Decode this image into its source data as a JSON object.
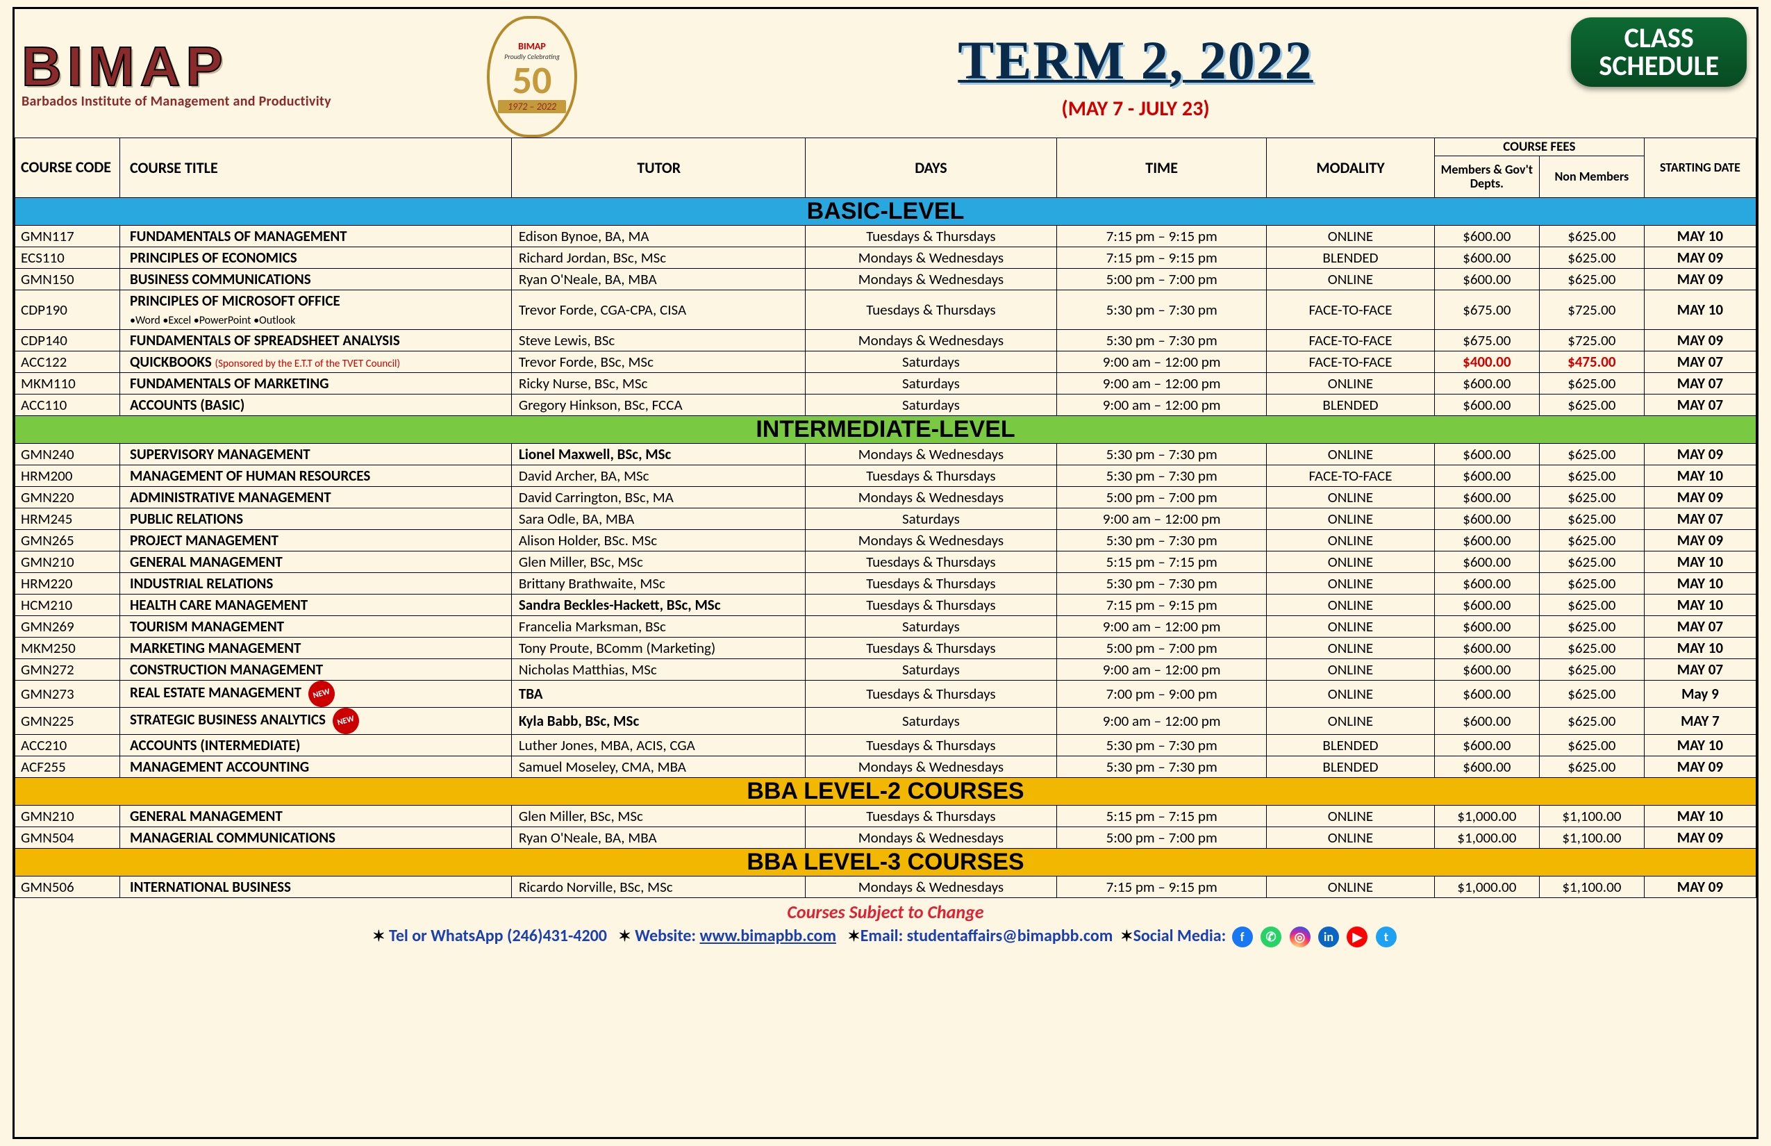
{
  "logo": {
    "text": "BIMAP",
    "subtitle": "Barbados Institute of Management and Productivity"
  },
  "anniversary": {
    "top": "BIMAP",
    "line": "Proudly Celebrating",
    "num": "50",
    "years": "1972  –  2022"
  },
  "header": {
    "title": "TERM 2, 2022",
    "subtitle": "(MAY 7 - JULY 23)",
    "badge1": "CLASS",
    "badge2": "SCHEDULE"
  },
  "fees_label": "COURSE FEES",
  "columns": {
    "code": "COURSE CODE",
    "title": "COURSE TITLE",
    "tutor": "TUTOR",
    "days": "DAYS",
    "time": "TIME",
    "modality": "MODALITY",
    "fee1": "Members & Gov't Depts.",
    "fee2": "Non Members",
    "start": "STARTING DATE"
  },
  "sections": {
    "basic": "BASIC-LEVEL",
    "inter": "INTERMEDIATE-LEVEL",
    "bba2": "BBA LEVEL-2 COURSES",
    "bba3": "BBA LEVEL-3 COURSES"
  },
  "basic": [
    {
      "code": "GMN117",
      "title": "FUNDAMENTALS OF MANAGEMENT",
      "tutor": "Edison Bynoe, BA, MA",
      "days": "Tuesdays & Thursdays",
      "time": "7:15 pm – 9:15 pm",
      "mod": "ONLINE",
      "f1": "$600.00",
      "f2": "$625.00",
      "date": "MAY 10"
    },
    {
      "code": "ECS110",
      "title": "PRINCIPLES OF ECONOMICS",
      "tutor": "Richard Jordan, BSc, MSc",
      "days": "Mondays & Wednesdays",
      "time": "7:15 pm – 9:15 pm",
      "mod": "BLENDED",
      "f1": "$600.00",
      "f2": "$625.00",
      "date": "MAY 09"
    },
    {
      "code": "GMN150",
      "title": "BUSINESS COMMUNICATIONS",
      "tutor": "Ryan O'Neale, BA, MBA",
      "days": "Mondays & Wednesdays",
      "time": "5:00 pm – 7:00 pm",
      "mod": "ONLINE",
      "f1": "$600.00",
      "f2": "$625.00",
      "date": "MAY 09"
    },
    {
      "code": "CDP190",
      "title": "PRINCIPLES OF MICROSOFT OFFICE",
      "sub": "•Word •Excel •PowerPoint •Outlook",
      "tutor": "Trevor Forde, CGA-CPA, CISA",
      "days": "Tuesdays & Thursdays",
      "time": "5:30 pm – 7:30 pm",
      "mod": "FACE-TO-FACE",
      "f1": "$675.00",
      "f2": "$725.00",
      "date": "MAY 10"
    },
    {
      "code": "CDP140",
      "title": "FUNDAMENTALS OF SPREADSHEET ANALYSIS",
      "tutor": "Steve Lewis, BSc",
      "days": "Mondays & Wednesdays",
      "time": "5:30 pm – 7:30 pm",
      "mod": "FACE-TO-FACE",
      "f1": "$675.00",
      "f2": "$725.00",
      "date": "MAY 09"
    },
    {
      "code": "ACC122",
      "title": "QUICKBOOKS",
      "sponsor": "(Sponsored by the E.T.T of the TVET Council)",
      "tutor": "Trevor Forde, BSc, MSc",
      "days": "Saturdays",
      "time": "9:00 am – 12:00 pm",
      "mod": "FACE-TO-FACE",
      "f1": "$400.00",
      "f2": "$475.00",
      "date": "MAY 07",
      "red": true
    },
    {
      "code": "MKM110",
      "title": "FUNDAMENTALS OF MARKETING",
      "tutor": "Ricky Nurse, BSc, MSc",
      "days": "Saturdays",
      "time": "9:00 am – 12:00 pm",
      "mod": "ONLINE",
      "f1": "$600.00",
      "f2": "$625.00",
      "date": "MAY 07"
    },
    {
      "code": "ACC110",
      "title": "ACCOUNTS (BASIC)",
      "tutor": "Gregory Hinkson, BSc, FCCA",
      "days": "Saturdays",
      "time": "9:00 am – 12:00 pm",
      "mod": "BLENDED",
      "f1": "$600.00",
      "f2": "$625.00",
      "date": "MAY 07"
    }
  ],
  "inter": [
    {
      "code": "GMN240",
      "title": "SUPERVISORY MANAGEMENT",
      "tutor": "Lionel Maxwell, BSc, MSc",
      "bold": true,
      "days": "Mondays & Wednesdays",
      "time": "5:30 pm – 7:30 pm",
      "mod": "ONLINE",
      "f1": "$600.00",
      "f2": "$625.00",
      "date": "MAY 09"
    },
    {
      "code": "HRM200",
      "title": "MANAGEMENT OF HUMAN RESOURCES",
      "tutor": "David Archer, BA, MSc",
      "days": "Tuesdays & Thursdays",
      "time": "5:30 pm – 7:30 pm",
      "mod": "FACE-TO-FACE",
      "f1": "$600.00",
      "f2": "$625.00",
      "date": "MAY 10"
    },
    {
      "code": "GMN220",
      "title": "ADMINISTRATIVE MANAGEMENT",
      "tutor": "David Carrington, BSc, MA",
      "days": "Mondays & Wednesdays",
      "time": "5:00 pm – 7:00 pm",
      "mod": "ONLINE",
      "f1": "$600.00",
      "f2": "$625.00",
      "date": "MAY 09"
    },
    {
      "code": "HRM245",
      "title": "PUBLIC RELATIONS",
      "tutor": "Sara Odle, BA, MBA",
      "days": "Saturdays",
      "time": "9:00 am – 12:00 pm",
      "mod": "ONLINE",
      "f1": "$600.00",
      "f2": "$625.00",
      "date": "MAY 07"
    },
    {
      "code": "GMN265",
      "title": "PROJECT MANAGEMENT",
      "tutor": "Alison Holder, BSc. MSc",
      "days": "Mondays & Wednesdays",
      "time": "5:30 pm – 7:30 pm",
      "mod": "ONLINE",
      "f1": "$600.00",
      "f2": "$625.00",
      "date": "MAY 09"
    },
    {
      "code": "GMN210",
      "title": "GENERAL MANAGEMENT",
      "tutor": "Glen Miller, BSc, MSc",
      "days": "Tuesdays & Thursdays",
      "time": "5:15 pm – 7:15 pm",
      "mod": "ONLINE",
      "f1": "$600.00",
      "f2": "$625.00",
      "date": "MAY 10"
    },
    {
      "code": "HRM220",
      "title": "INDUSTRIAL RELATIONS",
      "tutor": "Brittany Brathwaite, MSc",
      "days": "Tuesdays & Thursdays",
      "time": "5:30 pm – 7:30 pm",
      "mod": "ONLINE",
      "f1": "$600.00",
      "f2": "$625.00",
      "date": "MAY 10"
    },
    {
      "code": "HCM210",
      "title": "HEALTH CARE MANAGEMENT",
      "tutor": "Sandra Beckles-Hackett, BSc, MSc",
      "bold": true,
      "days": "Tuesdays & Thursdays",
      "time": "7:15 pm – 9:15 pm",
      "mod": "ONLINE",
      "f1": "$600.00",
      "f2": "$625.00",
      "date": "MAY 10"
    },
    {
      "code": "GMN269",
      "title": "TOURISM MANAGEMENT",
      "tutor": "Francelia Marksman, BSc",
      "days": "Saturdays",
      "time": "9:00 am – 12:00 pm",
      "mod": "ONLINE",
      "f1": "$600.00",
      "f2": "$625.00",
      "date": "MAY 07"
    },
    {
      "code": "MKM250",
      "title": "MARKETING MANAGEMENT",
      "tutor": "Tony Proute, BComm (Marketing)",
      "days": "Tuesdays & Thursdays",
      "time": "5:00 pm – 7:00 pm",
      "mod": "ONLINE",
      "f1": "$600.00",
      "f2": "$625.00",
      "date": "MAY 10"
    },
    {
      "code": "GMN272",
      "title": "CONSTRUCTION MANAGEMENT",
      "tutor": "Nicholas Matthias, MSc",
      "days": "Saturdays",
      "time": "9:00 am – 12:00 pm",
      "mod": "ONLINE",
      "f1": "$600.00",
      "f2": "$625.00",
      "date": "MAY 07"
    },
    {
      "code": "GMN273",
      "title": "REAL ESTATE MANAGEMENT",
      "new": true,
      "tutor": "TBA",
      "bold": true,
      "days": "Tuesdays & Thursdays",
      "time": "7:00 pm – 9:00 pm",
      "mod": "ONLINE",
      "f1": "$600.00",
      "f2": "$625.00",
      "date": "May 9"
    },
    {
      "code": "GMN225",
      "title": "STRATEGIC BUSINESS ANALYTICS",
      "new": true,
      "tutor": "Kyla Babb, BSc, MSc",
      "bold": true,
      "days": "Saturdays",
      "time": "9:00 am – 12:00 pm",
      "mod": "ONLINE",
      "f1": "$600.00",
      "f2": "$625.00",
      "date": "MAY 7"
    },
    {
      "code": "ACC210",
      "title": "ACCOUNTS (INTERMEDIATE)",
      "tutor": "Luther Jones,  MBA, ACIS, CGA",
      "days": "Tuesdays & Thursdays",
      "time": "5:30 pm – 7:30 pm",
      "mod": "BLENDED",
      "f1": "$600.00",
      "f2": "$625.00",
      "date": "MAY 10"
    },
    {
      "code": "ACF255",
      "title": "MANAGEMENT ACCOUNTING",
      "tutor": "Samuel Moseley, CMA, MBA",
      "days": "Mondays & Wednesdays",
      "time": "5:30 pm – 7:30 pm",
      "mod": "BLENDED",
      "f1": "$600.00",
      "f2": "$625.00",
      "date": "MAY 09"
    }
  ],
  "bba2": [
    {
      "code": "GMN210",
      "title": "GENERAL MANAGEMENT",
      "tutor": "Glen Miller, BSc, MSc",
      "days": "Tuesdays & Thursdays",
      "time": "5:15 pm – 7:15 pm",
      "mod": "ONLINE",
      "f1": "$1,000.00",
      "f2": "$1,100.00",
      "date": "MAY 10"
    },
    {
      "code": "GMN504",
      "title": "MANAGERIAL COMMUNICATIONS",
      "tutor": "Ryan O'Neale, BA, MBA",
      "days": "Mondays & Wednesdays",
      "time": "5:00 pm – 7:00 pm",
      "mod": "ONLINE",
      "f1": "$1,000.00",
      "f2": "$1,100.00",
      "date": "MAY 09"
    }
  ],
  "bba3": [
    {
      "code": "GMN506",
      "title": "INTERNATIONAL BUSINESS",
      "tutor": "Ricardo Norville, BSc, MSc",
      "days": "Mondays & Wednesdays",
      "time": "7:15 pm – 9:15 pm",
      "mod": "ONLINE",
      "f1": "$1,000.00",
      "f2": "$1,100.00",
      "date": "MAY 09"
    }
  ],
  "footer": {
    "changes": "Courses Subject to Change",
    "tel_label": "Tel or WhatsApp",
    "tel": "(246)431-4200",
    "web_label": "Website:",
    "web": "www.bimapbb.com",
    "email_label": "Email:",
    "email": "studentaffairs@bimapbb.com",
    "social_label": "Social Media:"
  }
}
